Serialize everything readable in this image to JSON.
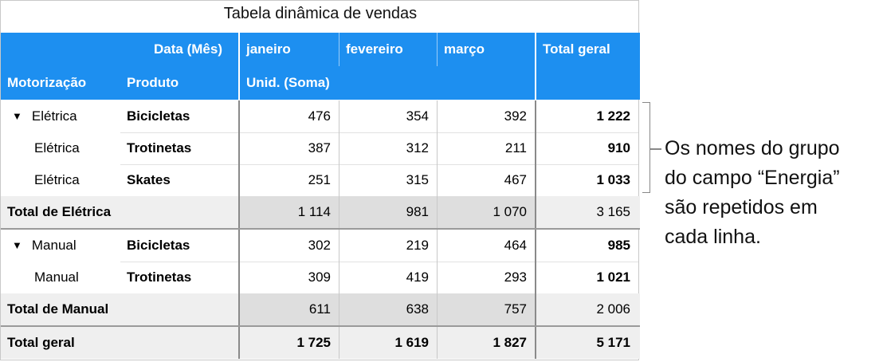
{
  "title": "Tabela dinâmica de vendas",
  "header": {
    "column_field": "Data  (Mês)",
    "months": [
      "janeiro",
      "fevereiro",
      "março"
    ],
    "total_label": "Total geral",
    "row_field_1": "Motorização",
    "row_field_2": "Produto",
    "values_label": "Unid.  (Soma)"
  },
  "groups": [
    {
      "rows": [
        {
          "group": "Elétrica",
          "product": "Bicicletas",
          "values": [
            "476",
            "354",
            "392"
          ],
          "total": "1 222"
        },
        {
          "group": "Elétrica",
          "product": "Trotinetas",
          "values": [
            "387",
            "312",
            "211"
          ],
          "total": "910"
        },
        {
          "group": "Elétrica",
          "product": "Skates",
          "values": [
            "251",
            "315",
            "467"
          ],
          "total": "1 033"
        }
      ],
      "total": {
        "label": "Total de Elétrica",
        "values": [
          "1 114",
          "981",
          "1 070"
        ],
        "total": "3 165"
      }
    },
    {
      "rows": [
        {
          "group": "Manual",
          "product": "Bicicletas",
          "values": [
            "302",
            "219",
            "464"
          ],
          "total": "985"
        },
        {
          "group": "Manual",
          "product": "Trotinetas",
          "values": [
            "309",
            "419",
            "293"
          ],
          "total": "1 021"
        }
      ],
      "total": {
        "label": "Total de Manual",
        "values": [
          "611",
          "638",
          "757"
        ],
        "total": "2 006"
      }
    }
  ],
  "grand_total": {
    "label": "Total geral",
    "values": [
      "1 725",
      "1 619",
      "1 827"
    ],
    "total": "5 171"
  },
  "callout": {
    "lines": [
      "Os nomes do grupo",
      "do campo “Energia”",
      "são repetidos em",
      "cada linha."
    ]
  },
  "colors": {
    "header": "#1d8ff0",
    "total_row": "#efefef",
    "shaded_cell": "#dedede"
  },
  "icons": {
    "collapse": "disclosure-triangle-down-icon"
  }
}
